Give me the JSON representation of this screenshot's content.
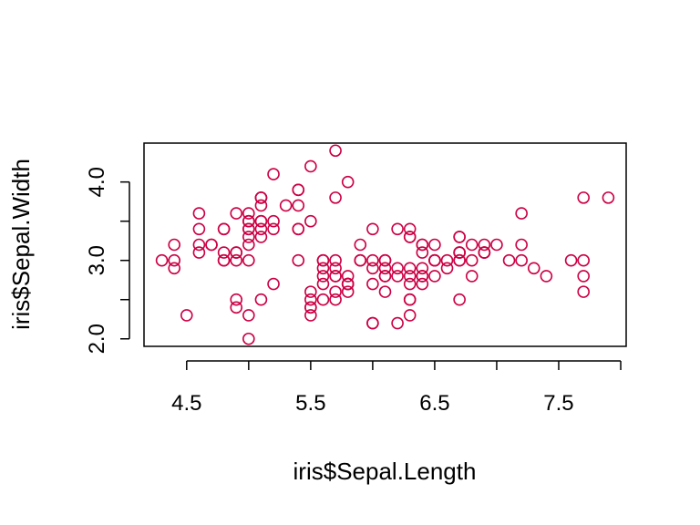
{
  "chart_data": {
    "type": "scatter",
    "title": "",
    "xlabel": "iris$Sepal.Length",
    "ylabel": "iris$Sepal.Width",
    "xlim": [
      4.3,
      7.9
    ],
    "ylim": [
      2.0,
      4.4
    ],
    "x_ticks": [
      4.5,
      5.5,
      6.5,
      7.5
    ],
    "x_tick_labels": [
      "4.5",
      "5.5",
      "6.5",
      "7.5"
    ],
    "x_minor_ticks": [
      5.0,
      6.0,
      7.0,
      8.0
    ],
    "y_ticks": [
      2.0,
      2.5,
      3.0,
      3.5,
      4.0
    ],
    "y_tick_labels": [
      "2.0",
      "",
      "3.0",
      "",
      "4.0"
    ],
    "grid": false,
    "point_color": "#CC0044",
    "points": [
      [
        5.1,
        3.5
      ],
      [
        4.9,
        3.0
      ],
      [
        4.7,
        3.2
      ],
      [
        4.6,
        3.1
      ],
      [
        5.0,
        3.6
      ],
      [
        5.4,
        3.9
      ],
      [
        4.6,
        3.4
      ],
      [
        5.0,
        3.4
      ],
      [
        4.4,
        2.9
      ],
      [
        4.9,
        3.1
      ],
      [
        5.4,
        3.7
      ],
      [
        4.8,
        3.4
      ],
      [
        4.8,
        3.0
      ],
      [
        4.3,
        3.0
      ],
      [
        5.8,
        4.0
      ],
      [
        5.7,
        4.4
      ],
      [
        5.4,
        3.9
      ],
      [
        5.1,
        3.5
      ],
      [
        5.7,
        3.8
      ],
      [
        5.1,
        3.8
      ],
      [
        5.4,
        3.4
      ],
      [
        5.1,
        3.7
      ],
      [
        4.6,
        3.6
      ],
      [
        5.1,
        3.3
      ],
      [
        4.8,
        3.4
      ],
      [
        5.0,
        3.0
      ],
      [
        5.0,
        3.4
      ],
      [
        5.2,
        3.5
      ],
      [
        5.2,
        3.4
      ],
      [
        4.7,
        3.2
      ],
      [
        4.8,
        3.1
      ],
      [
        5.4,
        3.4
      ],
      [
        5.2,
        4.1
      ],
      [
        5.5,
        4.2
      ],
      [
        4.9,
        3.1
      ],
      [
        5.0,
        3.2
      ],
      [
        5.5,
        3.5
      ],
      [
        4.9,
        3.6
      ],
      [
        4.4,
        3.0
      ],
      [
        5.1,
        3.4
      ],
      [
        5.0,
        3.5
      ],
      [
        4.5,
        2.3
      ],
      [
        4.4,
        3.2
      ],
      [
        5.0,
        3.5
      ],
      [
        5.1,
        3.8
      ],
      [
        4.8,
        3.0
      ],
      [
        5.1,
        3.8
      ],
      [
        4.6,
        3.2
      ],
      [
        5.3,
        3.7
      ],
      [
        5.0,
        3.3
      ],
      [
        7.0,
        3.2
      ],
      [
        6.4,
        3.2
      ],
      [
        6.9,
        3.1
      ],
      [
        5.5,
        2.3
      ],
      [
        6.5,
        2.8
      ],
      [
        5.7,
        2.8
      ],
      [
        6.3,
        3.3
      ],
      [
        4.9,
        2.4
      ],
      [
        6.6,
        2.9
      ],
      [
        5.2,
        2.7
      ],
      [
        5.0,
        2.0
      ],
      [
        5.9,
        3.0
      ],
      [
        6.0,
        2.2
      ],
      [
        6.1,
        2.9
      ],
      [
        5.6,
        2.9
      ],
      [
        6.7,
        3.1
      ],
      [
        5.6,
        3.0
      ],
      [
        5.8,
        2.7
      ],
      [
        6.2,
        2.2
      ],
      [
        5.6,
        2.5
      ],
      [
        5.9,
        3.2
      ],
      [
        6.1,
        2.8
      ],
      [
        6.3,
        2.5
      ],
      [
        6.1,
        2.8
      ],
      [
        6.4,
        2.9
      ],
      [
        6.6,
        3.0
      ],
      [
        6.8,
        2.8
      ],
      [
        6.7,
        3.0
      ],
      [
        6.0,
        2.9
      ],
      [
        5.7,
        2.6
      ],
      [
        5.5,
        2.4
      ],
      [
        5.5,
        2.4
      ],
      [
        5.8,
        2.7
      ],
      [
        6.0,
        2.7
      ],
      [
        5.4,
        3.0
      ],
      [
        6.0,
        3.4
      ],
      [
        6.7,
        3.1
      ],
      [
        6.3,
        2.3
      ],
      [
        5.6,
        3.0
      ],
      [
        5.5,
        2.5
      ],
      [
        5.5,
        2.6
      ],
      [
        6.1,
        3.0
      ],
      [
        5.8,
        2.6
      ],
      [
        5.0,
        2.3
      ],
      [
        5.6,
        2.7
      ],
      [
        5.7,
        3.0
      ],
      [
        5.7,
        2.9
      ],
      [
        6.2,
        2.9
      ],
      [
        5.1,
        2.5
      ],
      [
        5.7,
        2.8
      ],
      [
        6.3,
        3.3
      ],
      [
        5.8,
        2.7
      ],
      [
        7.1,
        3.0
      ],
      [
        6.3,
        2.9
      ],
      [
        6.5,
        3.0
      ],
      [
        7.6,
        3.0
      ],
      [
        4.9,
        2.5
      ],
      [
        7.3,
        2.9
      ],
      [
        6.7,
        2.5
      ],
      [
        7.2,
        3.6
      ],
      [
        6.5,
        3.2
      ],
      [
        6.4,
        2.7
      ],
      [
        6.8,
        3.0
      ],
      [
        5.7,
        2.5
      ],
      [
        5.8,
        2.8
      ],
      [
        6.4,
        3.2
      ],
      [
        6.5,
        3.0
      ],
      [
        7.7,
        3.8
      ],
      [
        7.7,
        2.6
      ],
      [
        6.0,
        2.2
      ],
      [
        6.9,
        3.2
      ],
      [
        5.6,
        2.8
      ],
      [
        7.7,
        2.8
      ],
      [
        6.3,
        2.7
      ],
      [
        6.7,
        3.3
      ],
      [
        7.2,
        3.2
      ],
      [
        6.2,
        2.8
      ],
      [
        6.1,
        3.0
      ],
      [
        6.4,
        2.8
      ],
      [
        7.2,
        3.0
      ],
      [
        7.4,
        2.8
      ],
      [
        7.9,
        3.8
      ],
      [
        6.4,
        2.8
      ],
      [
        6.3,
        2.8
      ],
      [
        6.1,
        2.6
      ],
      [
        7.7,
        3.0
      ],
      [
        6.3,
        3.4
      ],
      [
        6.4,
        3.1
      ],
      [
        6.0,
        3.0
      ],
      [
        6.9,
        3.1
      ],
      [
        6.7,
        3.1
      ],
      [
        6.9,
        3.1
      ],
      [
        5.8,
        2.7
      ],
      [
        6.8,
        3.2
      ],
      [
        6.7,
        3.3
      ],
      [
        6.7,
        3.0
      ],
      [
        6.3,
        2.5
      ],
      [
        6.5,
        3.0
      ],
      [
        6.2,
        3.4
      ],
      [
        5.9,
        3.0
      ]
    ]
  }
}
